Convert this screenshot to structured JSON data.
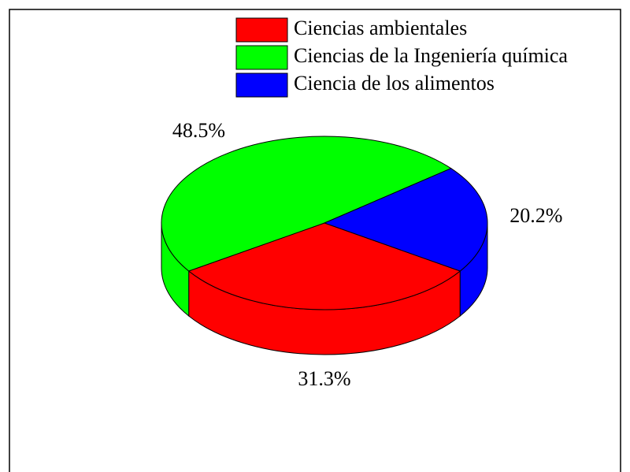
{
  "chart_data": {
    "type": "pie3d",
    "categories": [
      "Ciencias ambientales",
      "Ciencias de la Ingeniería química",
      "Ciencia de los alimentos"
    ],
    "values": [
      31.3,
      48.5,
      20.2
    ],
    "value_labels": [
      "31.3%",
      "48.5%",
      "20.2%"
    ],
    "colors": [
      "#ff0000",
      "#00ff00",
      "#0000ff"
    ],
    "legend": "top"
  }
}
